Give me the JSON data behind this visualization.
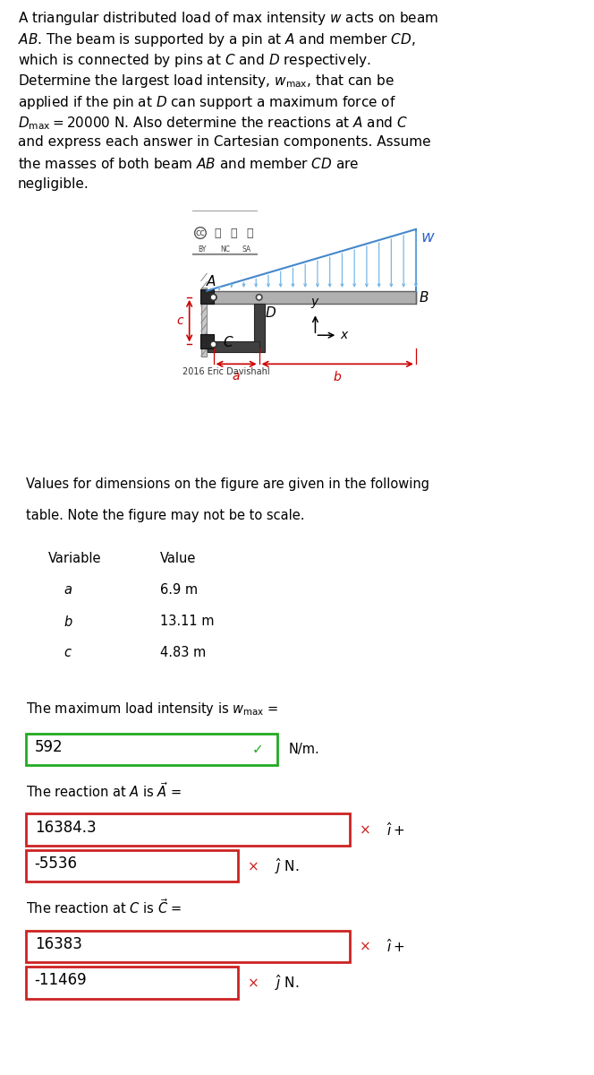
{
  "bg_color": "#ffffff",
  "text_color": "#000000",
  "beam_color_face": "#b0b0b0",
  "beam_color_edge": "#606060",
  "member_color_face": "#404040",
  "member_color_edge": "#252525",
  "wall_color_face": "#c8c8c8",
  "wall_color_edge": "#888888",
  "pinblock_color": "#282828",
  "load_color": "#78b8e8",
  "load_line_color": "#4488cc",
  "dim_color": "#cc0000",
  "coord_color": "#000000",
  "w_label_color": "#3366cc",
  "green_color": "#22aa22",
  "red_color": "#cc2222",
  "problem_lines": [
    "A triangular distributed load of max intensity $w$ acts on beam",
    "$AB$. The beam is supported by a pin at $A$ and member $CD$,",
    "which is connected by pins at $C$ and $D$ respectively.",
    "Determine the largest load intensity, $w_\\mathrm{max}$, that can be",
    "applied if the pin at $D$ can support a maximum force of",
    "$D_\\mathrm{max} = 20000$ N. Also determine the reactions at $A$ and $C$",
    "and express each answer in Cartesian components. Assume",
    "the masses of both beam $AB$ and member $CD$ are",
    "negligible."
  ],
  "cc_year": "2016 Eric Davishahl",
  "dim_note_line1": "Values for dimensions on the figure are given in the following",
  "dim_note_line2": "table. Note the figure may not be to scale.",
  "var_header": "Variable",
  "val_header": "Value",
  "table_vars": [
    "$a$",
    "$b$",
    "$c$"
  ],
  "table_vals": [
    "6.9 m",
    "13.11 m",
    "4.83 m"
  ],
  "wmax_text": "The maximum load intensity is $w_\\mathrm{max}$ =",
  "wmax_val": "592",
  "wmax_unit": "N/m.",
  "rxnA_text": "The reaction at $A$ is $\\vec{A}$ =",
  "rxnA_x": "16384.3",
  "rxnA_y": "-5536",
  "rxnC_text": "The reaction at $C$ is $\\vec{C}$ =",
  "rxnC_x": "16383",
  "rxnC_y": "-11469"
}
